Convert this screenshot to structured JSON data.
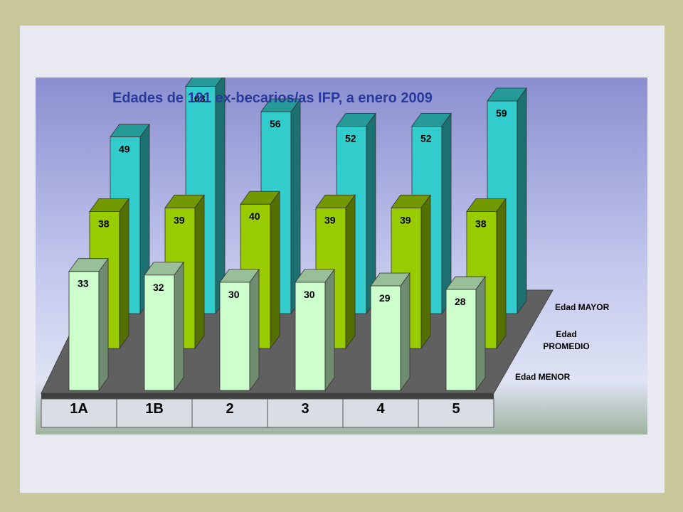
{
  "chart_data": {
    "type": "bar",
    "title": "Edades de 191 ex-becarios/as IFP, a enero 2009",
    "categories": [
      "1A",
      "1B",
      "2",
      "3",
      "4",
      "5"
    ],
    "series": [
      {
        "name": "Edad MAYOR",
        "values": [
          49,
          63,
          56,
          52,
          52,
          59
        ],
        "color": "#33cccc"
      },
      {
        "name": "Edad PROMEDIO",
        "values": [
          38,
          39,
          40,
          39,
          39,
          38
        ],
        "color": "#99cc00"
      },
      {
        "name": "Edad MENOR",
        "values": [
          33,
          32,
          30,
          30,
          29,
          28
        ],
        "color": "#ccffcc"
      }
    ],
    "series_label_lines": {
      "mayor": [
        "Edad MAYOR"
      ],
      "promedio": [
        "Edad",
        "PROMEDIO"
      ],
      "menor": [
        "Edad MENOR"
      ]
    },
    "ylim": [
      0,
      70
    ],
    "grid": false,
    "legend": "none",
    "chart_style": "3D clustered columns",
    "colors": {
      "floor": "#555555",
      "background_top": "#8a8fd0",
      "background_bottom": "#e5e8f4",
      "outer_frame": "#c9c89a",
      "title": "#2a3a9a"
    }
  }
}
